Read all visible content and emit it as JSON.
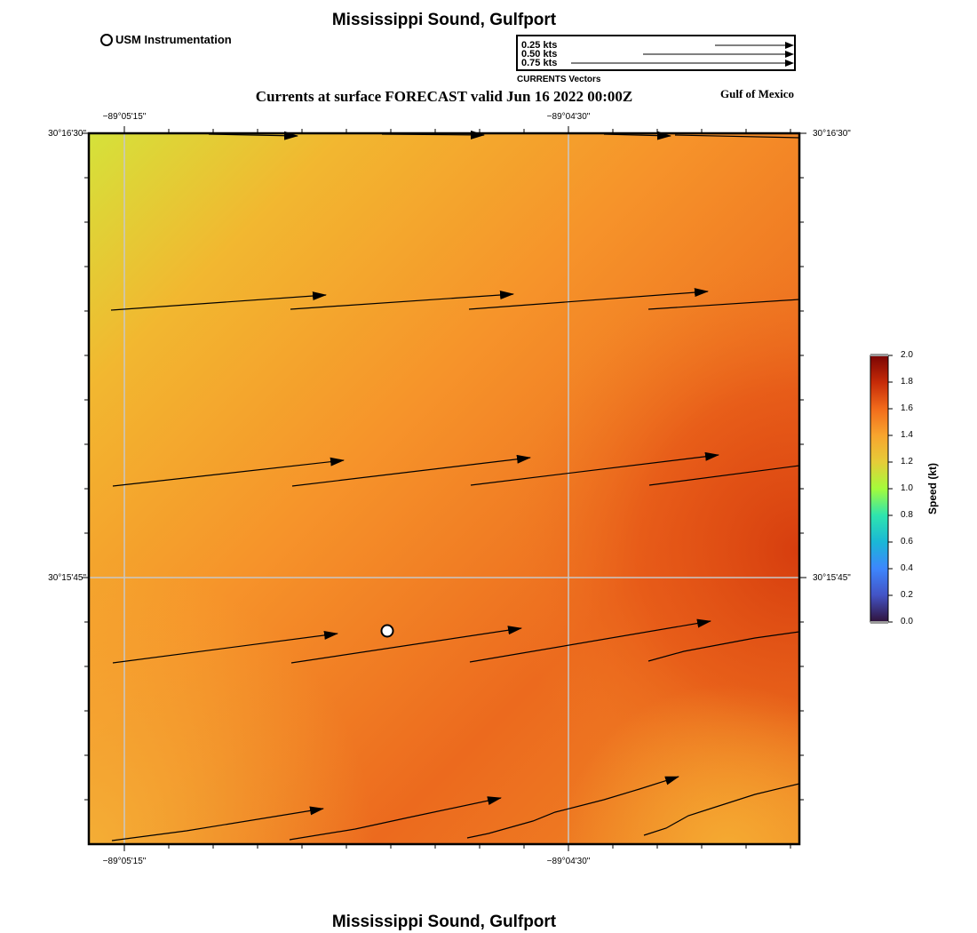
{
  "header": {
    "title": "Mississippi Sound, Gulfport",
    "legend_station": "USM Instrumentation",
    "subtitle": "Currents at surface FORECAST valid Jun 16 2022 00:00Z",
    "region": "Gulf of Mexico"
  },
  "vector_legend": {
    "caption": "CURRENTS Vectors",
    "entries": [
      {
        "label": "0.25 kts",
        "speed": 0.25
      },
      {
        "label": "0.50 kts",
        "speed": 0.5
      },
      {
        "label": "0.75 kts",
        "speed": 0.75
      }
    ]
  },
  "map": {
    "lon_labels": [
      "−89°05'15\"",
      "−89°04'30\""
    ],
    "lat_labels": [
      "30°16'30\"",
      "30°15'45\""
    ],
    "station": {
      "name": "USM Instrumentation",
      "marker": "open-circle"
    },
    "colors": {
      "low_speed": "#d5e23a",
      "mid_speed": "#f5a32c",
      "high_speed": "#d9400e"
    }
  },
  "colorbar": {
    "label": "Speed (kt)",
    "ticks": [
      "2.0",
      "1.8",
      "1.6",
      "1.4",
      "1.2",
      "1.0",
      "0.8",
      "0.6",
      "0.4",
      "0.2",
      "0.0"
    ],
    "range": [
      0.0,
      2.0
    ],
    "colors": [
      "#7a0403",
      "#c52a08",
      "#f26b1b",
      "#f8a52e",
      "#e6cc38",
      "#a4fc3b",
      "#2ee5ae",
      "#1ab7d6",
      "#3d86fd",
      "#4353c5",
      "#30123b"
    ]
  },
  "footer": {
    "title": "Mississippi Sound, Gulfport"
  }
}
